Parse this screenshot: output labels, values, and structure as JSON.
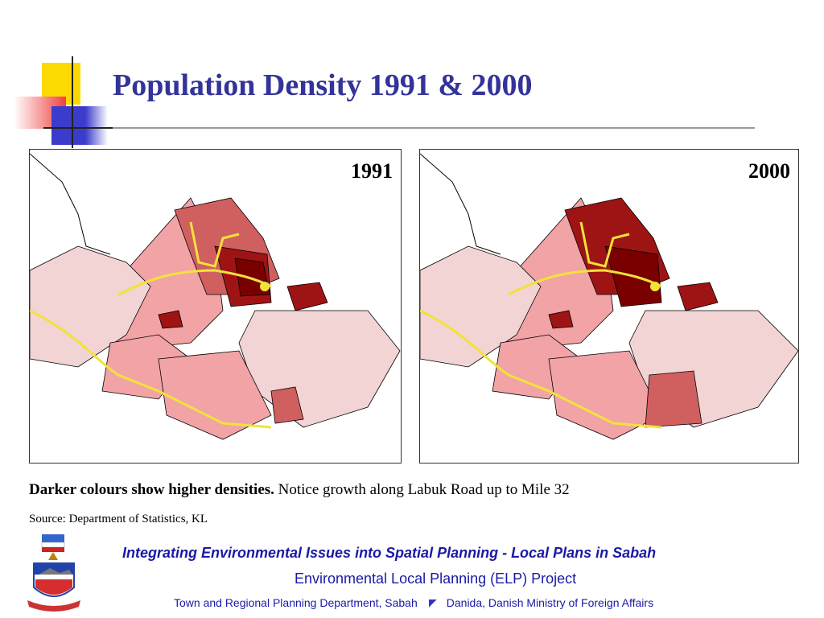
{
  "slide": {
    "title": "Population Density 1991 & 2000",
    "maps": [
      {
        "year_label": "1991"
      },
      {
        "year_label": "2000"
      }
    ],
    "caption": {
      "bold": "Darker colours show higher densities.",
      "normal": " Notice growth along Labuk Road up to Mile 32"
    },
    "source": "Source: Department of Statistics, KL"
  },
  "footer": {
    "line1": "Integrating Environmental Issues into Spatial Planning - Local Plans in Sabah",
    "line2": "Environmental Local Planning (ELP) Project",
    "line3_left": "Town and Regional Planning Department, Sabah",
    "line3_right": "Danida, Danish Ministry of Foreign Affairs",
    "crest_motto": "SABAH MAJU JAYA"
  },
  "colors": {
    "title": "#33339a",
    "footer_text": "#1a1aa6",
    "density_low": "#f2d4d4",
    "density_mid": "#f2a3a6",
    "density_high": "#d0605f",
    "density_very_high": "#9e1414",
    "density_max": "#7a0000",
    "road": "#f2e23a"
  }
}
